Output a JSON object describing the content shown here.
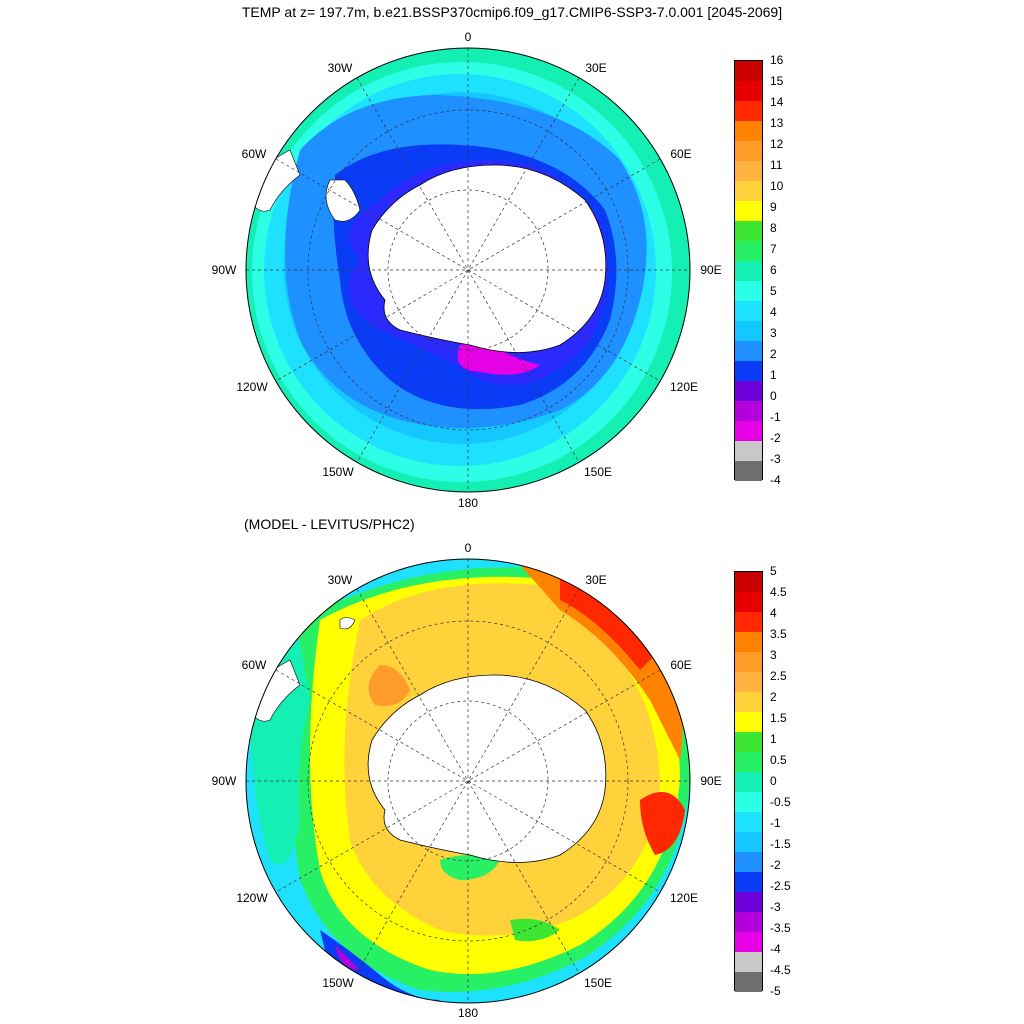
{
  "title": "TEMP at z= 197.7m, b.e21.BSSP370cmip6.f09_g17.CMIP6-SSP3-7.0.001 [2045-2069]",
  "subtitle": "(MODEL - LEVITUS/PHC2)",
  "longitude_labels": {
    "n0": "0",
    "n30e": "30E",
    "n60e": "60E",
    "n90e": "90E",
    "n120e": "120E",
    "n150e": "150E",
    "n180": "180",
    "n150w": "150W",
    "n120w": "120W",
    "n90w": "90W",
    "n60w": "60W",
    "n30w": "30W"
  },
  "top_colorbar": {
    "labels": [
      "16",
      "15",
      "14",
      "13",
      "12",
      "11",
      "10",
      "9",
      "8",
      "7",
      "6",
      "5",
      "4",
      "3",
      "2",
      "1",
      "0",
      "-1",
      "-2",
      "-3",
      "-4"
    ],
    "colors": [
      "#c80000",
      "#e60000",
      "#ff2800",
      "#ff8200",
      "#ff9b28",
      "#ffb441",
      "#ffd23c",
      "#ffff00",
      "#3ce632",
      "#28f064",
      "#14f0b4",
      "#2dffe6",
      "#1ee1ff",
      "#14c8ff",
      "#1e90ff",
      "#0a3cf5",
      "#6e00dc",
      "#b400dc",
      "#e600e6",
      "#c8c8c8",
      "#6e6e6e"
    ]
  },
  "bottom_colorbar": {
    "labels": [
      "5",
      "4.5",
      "4",
      "3.5",
      "3",
      "2.5",
      "2",
      "1.5",
      "1",
      "0.5",
      "0",
      "-0.5",
      "-1",
      "-1.5",
      "-2",
      "-2.5",
      "-3",
      "-3.5",
      "-4",
      "-4.5",
      "-5"
    ],
    "colors": [
      "#c80000",
      "#e60000",
      "#ff2800",
      "#ff8200",
      "#ff9b28",
      "#ffb441",
      "#ffd23c",
      "#ffff00",
      "#3ce632",
      "#28f064",
      "#14f0b4",
      "#2dffe6",
      "#1ee1ff",
      "#14c8ff",
      "#1e90ff",
      "#0a3cf5",
      "#6e00dc",
      "#b400dc",
      "#e600e6",
      "#c8c8c8",
      "#6e6e6e"
    ]
  }
}
